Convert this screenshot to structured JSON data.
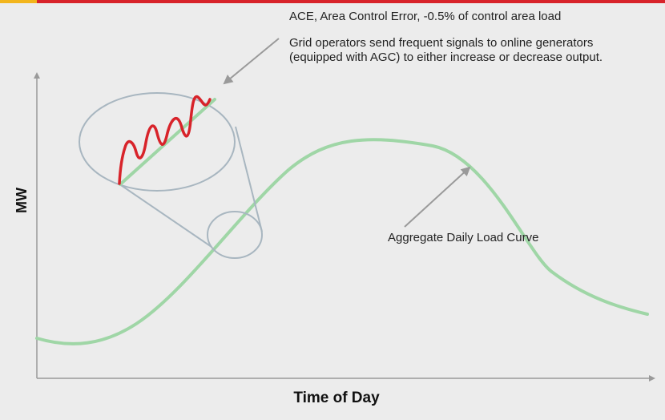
{
  "diagram": {
    "ace_title": "ACE, Area Control Error, -0.5% of control area load",
    "ace_description": "Grid operators send frequent signals to online generators (equipped with AGC) to either increase or decrease output.",
    "curve_label": "Aggregate Daily Load Curve",
    "y_axis_label": "MW",
    "x_axis_label": "Time of Day"
  },
  "colors": {
    "load_curve": "#9fd6a6",
    "ace_signal": "#d8232a",
    "magnifier": "#a8b6c0",
    "axis": "#9a9a9a",
    "pointer_arrow": "#9a9a9a",
    "top_bar_accent": "#f2b51c",
    "top_bar_main": "#d8232a"
  }
}
